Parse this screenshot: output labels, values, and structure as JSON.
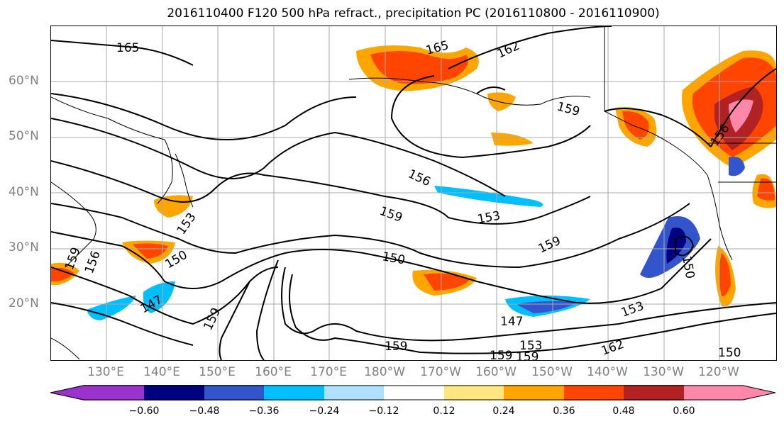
{
  "title": "2016110400 F120 500 hPa refract., precipitation PC (2016110800 - 2016110900)",
  "lat_labels": [
    "60°N",
    "50°N",
    "40°N",
    "30°N",
    "20°N"
  ],
  "lon_labels": [
    "130°E",
    "140°E",
    "150°E",
    "160°E",
    "170°E",
    "180°W",
    "170°W",
    "160°W",
    "150°W",
    "140°W",
    "130°W",
    "120°W"
  ],
  "contour_labels": [
    "165",
    "165",
    "162",
    "159",
    "156",
    "156",
    "159",
    "153",
    "159",
    "150",
    "153",
    "150",
    "159",
    "156",
    "147",
    "159",
    "147",
    "159",
    "159",
    "153",
    "162",
    "159",
    "153",
    "150",
    "150"
  ],
  "colorbar": {
    "ticks": [
      "−0.60",
      "−0.48",
      "−0.36",
      "−0.24",
      "−0.12",
      "0.12",
      "0.24",
      "0.36",
      "0.48",
      "0.60"
    ],
    "colors": [
      "#9933cc",
      "#000080",
      "#3355cc",
      "#00bfff",
      "#b0e0ff",
      "#ffffff",
      "#ffe680",
      "#ffa500",
      "#ff4500",
      "#b22222",
      "#ff88aa"
    ]
  }
}
